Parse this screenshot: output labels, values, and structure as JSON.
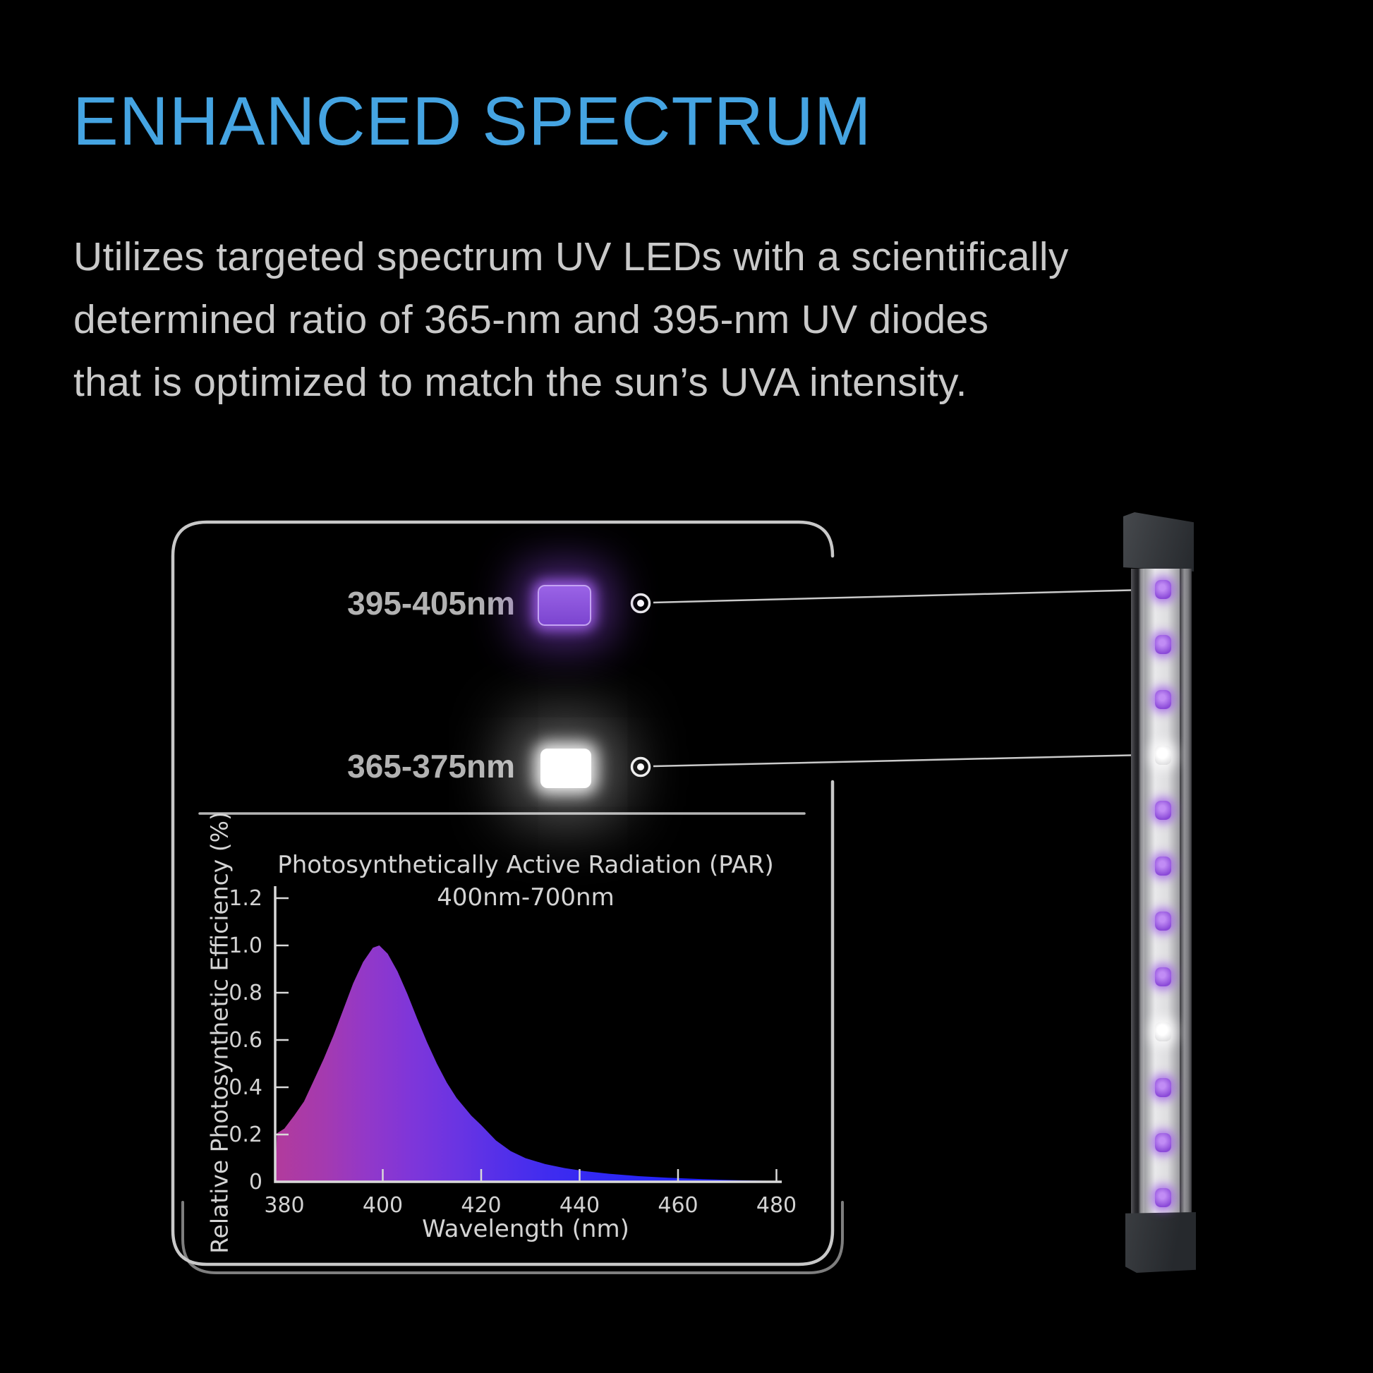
{
  "page": {
    "background": "#000000"
  },
  "header": {
    "title": "ENHANCED SPECTRUM",
    "title_color": "#45a4e2",
    "description_lines": [
      "Utilizes targeted spectrum UV LEDs with a scientifically",
      "determined ratio of 365-nm and 395-nm UV diodes",
      "that is optimized to match the sun’s UVA intensity."
    ]
  },
  "diagram": {
    "panel_border_color": "#c8c8c8",
    "callouts": [
      {
        "label": "395-405nm",
        "type": "purple-led",
        "swatch_color": "#8450d8",
        "glow_color": "#8a4ae0"
      },
      {
        "label": "365-375nm",
        "type": "white-led",
        "swatch_color": "#ffffff",
        "glow_color": "#ffffff"
      }
    ]
  },
  "chart_data": {
    "type": "area",
    "title": "Photosynthetically Active Radiation (PAR)",
    "subtitle": "400nm-700nm",
    "xlabel": "Wavelength (nm)",
    "ylabel": "Relative Photosynthetic Efficiency (%)",
    "xlim": [
      378,
      481
    ],
    "ylim": [
      0,
      1.2
    ],
    "x_ticks": [
      380,
      400,
      420,
      440,
      460,
      480
    ],
    "y_ticks": [
      0,
      0.2,
      0.4,
      0.6,
      0.8,
      1.0,
      1.2
    ],
    "y_tick_labels": [
      "0",
      "0.2",
      "0.4",
      "0.6",
      "0.8",
      "1.0",
      "1.2"
    ],
    "grid": false,
    "legend": false,
    "series": [
      {
        "name": "Relative photosynthetic efficiency",
        "x": [
          378.5,
          380,
          382,
          384,
          386,
          388,
          390,
          392,
          394,
          396,
          398,
          399.3,
          401,
          403,
          405,
          407,
          409,
          411,
          413,
          415,
          418,
          420,
          423,
          426,
          429,
          433,
          437,
          441,
          446,
          452,
          458,
          465,
          472,
          480
        ],
        "y": [
          0.205,
          0.225,
          0.28,
          0.34,
          0.43,
          0.52,
          0.62,
          0.73,
          0.84,
          0.93,
          0.99,
          1.0,
          0.965,
          0.89,
          0.795,
          0.69,
          0.59,
          0.5,
          0.42,
          0.355,
          0.28,
          0.24,
          0.175,
          0.13,
          0.1,
          0.075,
          0.058,
          0.045,
          0.034,
          0.024,
          0.017,
          0.011,
          0.007,
          0.004
        ],
        "peak": {
          "x": 399,
          "y": 1.0
        }
      }
    ],
    "fill_gradient": [
      "#b23b9c",
      "#9338c8",
      "#6b34e2",
      "#3f2cef",
      "#2424f7",
      "#1f1ff9"
    ]
  },
  "led_bar": {
    "description": "UV LED light bar",
    "led_colors": [
      "purple",
      "purple",
      "purple",
      "white",
      "purple",
      "purple",
      "purple",
      "purple",
      "white",
      "purple",
      "purple",
      "purple"
    ],
    "purple_hex": "#9b59e8",
    "white_hex": "#ffffff"
  }
}
